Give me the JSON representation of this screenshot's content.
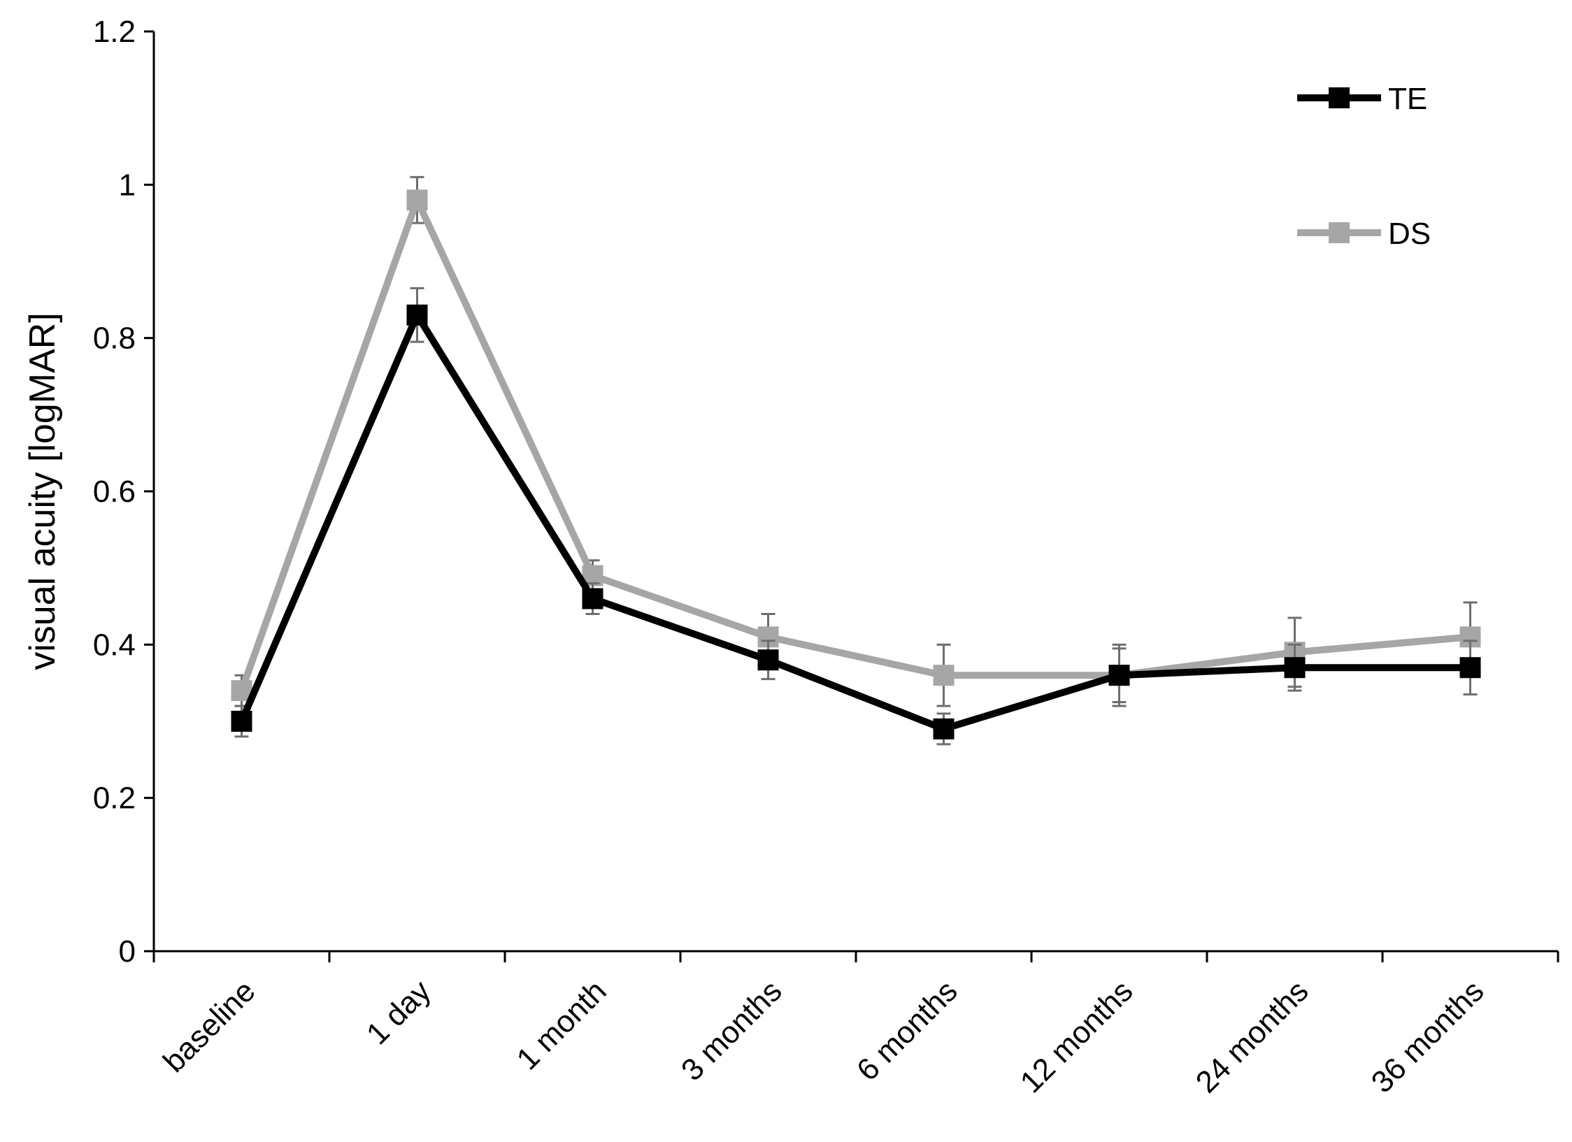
{
  "chart_data": {
    "type": "line",
    "title": "",
    "xlabel": "",
    "ylabel": "visual acuity [logMAR]",
    "categories": [
      "baseline",
      "1 day",
      "1 month",
      "3 months",
      "6 months",
      "12 months",
      "24 months",
      "36 months"
    ],
    "ylim": [
      0,
      1.2
    ],
    "yticks": [
      0,
      0.2,
      0.4,
      0.6,
      0.8,
      1,
      1.2
    ],
    "ytick_labels": [
      "0",
      "0.2",
      "0.4",
      "0.6",
      "0.8",
      "1",
      "1.2"
    ],
    "grid": false,
    "legend_position": "top-right",
    "series": [
      {
        "name": "TE",
        "color": "#000000",
        "values": [
          0.3,
          0.83,
          0.46,
          0.38,
          0.29,
          0.36,
          0.37,
          0.37
        ],
        "error": [
          0.02,
          0.035,
          0.02,
          0.025,
          0.02,
          0.035,
          0.03,
          0.035
        ]
      },
      {
        "name": "DS",
        "color": "#a6a6a6",
        "values": [
          0.34,
          0.98,
          0.49,
          0.41,
          0.36,
          0.36,
          0.39,
          0.41
        ],
        "error": [
          0.02,
          0.03,
          0.02,
          0.03,
          0.04,
          0.04,
          0.045,
          0.045
        ]
      }
    ]
  }
}
